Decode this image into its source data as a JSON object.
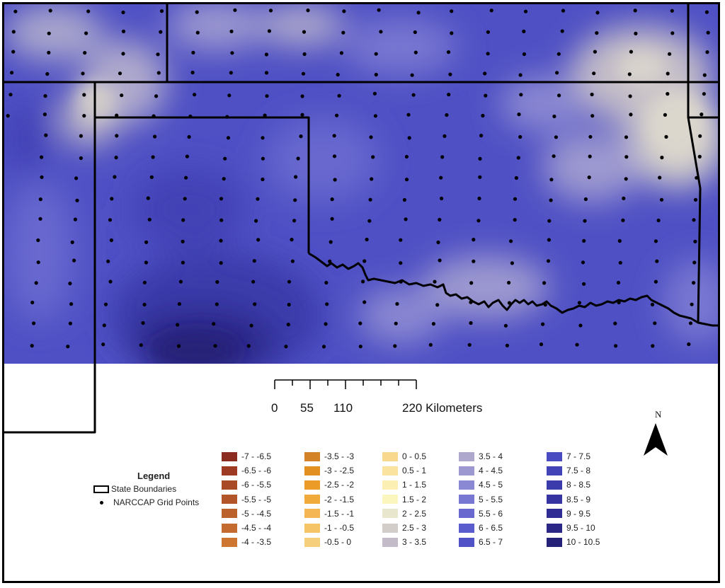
{
  "legend": {
    "title": "Legend",
    "state_boundaries_label": "State Boundaries",
    "grid_points_label": "NARCCAP Grid Points"
  },
  "scale_bar": {
    "ticks": [
      "0",
      "55",
      "110",
      "220 Kilometers"
    ]
  },
  "north_arrow": {
    "label": "N"
  },
  "classes": [
    {
      "label": "-7 - -6.5",
      "color": "#8b2a1e"
    },
    {
      "label": "-6.5 - -6",
      "color": "#9c3a22"
    },
    {
      "label": "-6 - -5.5",
      "color": "#a84a26"
    },
    {
      "label": "-5.5 - -5",
      "color": "#b2562a"
    },
    {
      "label": "-5 - -4.5",
      "color": "#bb612c"
    },
    {
      "label": "-4.5 - -4",
      "color": "#c46c2f"
    },
    {
      "label": "-4 - -3.5",
      "color": "#cc7632"
    },
    {
      "label": "-3.5 - -3",
      "color": "#d48228"
    },
    {
      "label": "-3 - -2.5",
      "color": "#e29020"
    },
    {
      "label": "-2.5 - -2",
      "color": "#eb9c28"
    },
    {
      "label": "-2 - -1.5",
      "color": "#f0aa3a"
    },
    {
      "label": "-1.5 - -1",
      "color": "#f3b652"
    },
    {
      "label": "-1 - -0.5",
      "color": "#f5c466"
    },
    {
      "label": "-0.5 - 0",
      "color": "#f6cf7c"
    },
    {
      "label": "0 - 0.5",
      "color": "#f8d88c"
    },
    {
      "label": "0.5 - 1",
      "color": "#fae29f"
    },
    {
      "label": "1 - 1.5",
      "color": "#fcefb3"
    },
    {
      "label": "1.5 - 2",
      "color": "#fbf6be"
    },
    {
      "label": "2 - 2.5",
      "color": "#e8e6cc"
    },
    {
      "label": "2.5 - 3",
      "color": "#d2cdc9"
    },
    {
      "label": "3 - 3.5",
      "color": "#c3bcc8"
    },
    {
      "label": "3.5 - 4",
      "color": "#aea9cc"
    },
    {
      "label": "4 - 4.5",
      "color": "#9d99d0"
    },
    {
      "label": "4.5 - 5",
      "color": "#8a88d2"
    },
    {
      "label": "5 - 5.5",
      "color": "#7877d1"
    },
    {
      "label": "5.5 - 6",
      "color": "#6868cf"
    },
    {
      "label": "6 - 6.5",
      "color": "#5a5bcc"
    },
    {
      "label": "6.5 - 7",
      "color": "#5152c6"
    },
    {
      "label": "7 - 7.5",
      "color": "#4a4bc0"
    },
    {
      "label": "7.5 - 8",
      "color": "#4243b6"
    },
    {
      "label": "8 - 8.5",
      "color": "#3b3bab"
    },
    {
      "label": "8.5 - 9",
      "color": "#3534a0"
    },
    {
      "label": "9 - 9.5",
      "color": "#2f2d93"
    },
    {
      "label": "9.5 - 10",
      "color": "#2a2786"
    },
    {
      "label": "10 - 10.5",
      "color": "#252078"
    }
  ]
}
